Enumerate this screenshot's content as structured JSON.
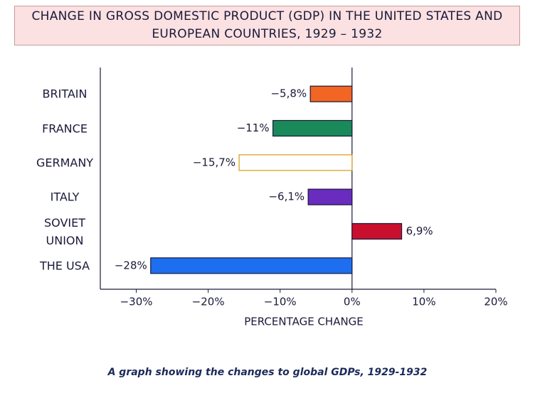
{
  "chart_data": {
    "type": "barh",
    "title": "CHANGE IN GROSS DOMESTIC PRODUCT (GDP) IN THE UNITED STATES AND EUROPEAN COUNTRIES, 1929 – 1932",
    "categories": [
      "BRITAIN",
      "FRANCE",
      "GERMANY",
      "ITALY",
      "SOVIET UNION",
      "THE USA"
    ],
    "values": [
      -5.8,
      -11,
      -15.7,
      -6.1,
      6.9,
      -28
    ],
    "value_labels": [
      "−5,8%",
      "−11%",
      "−15,7%",
      "−6,1%",
      "6,9%",
      "−28%"
    ],
    "colors": [
      "#f26522",
      "#1b8a5a",
      "#ffffff",
      "#6a2bbf",
      "#c8102e",
      "#1e6ff0"
    ],
    "xlim": [
      -35,
      20
    ],
    "xticks": [
      {
        "value": -30,
        "label": "−30%"
      },
      {
        "value": -20,
        "label": "−20%"
      },
      {
        "value": -10,
        "label": "−10%"
      },
      {
        "value": 0,
        "label": "0%"
      },
      {
        "value": 10,
        "label": "10%"
      },
      {
        "value": 20,
        "label": "20%"
      }
    ],
    "xlabel": "PERCENTAGE CHANGE",
    "caption": "A graph showing the changes to global GDPs, 1929-1932"
  }
}
